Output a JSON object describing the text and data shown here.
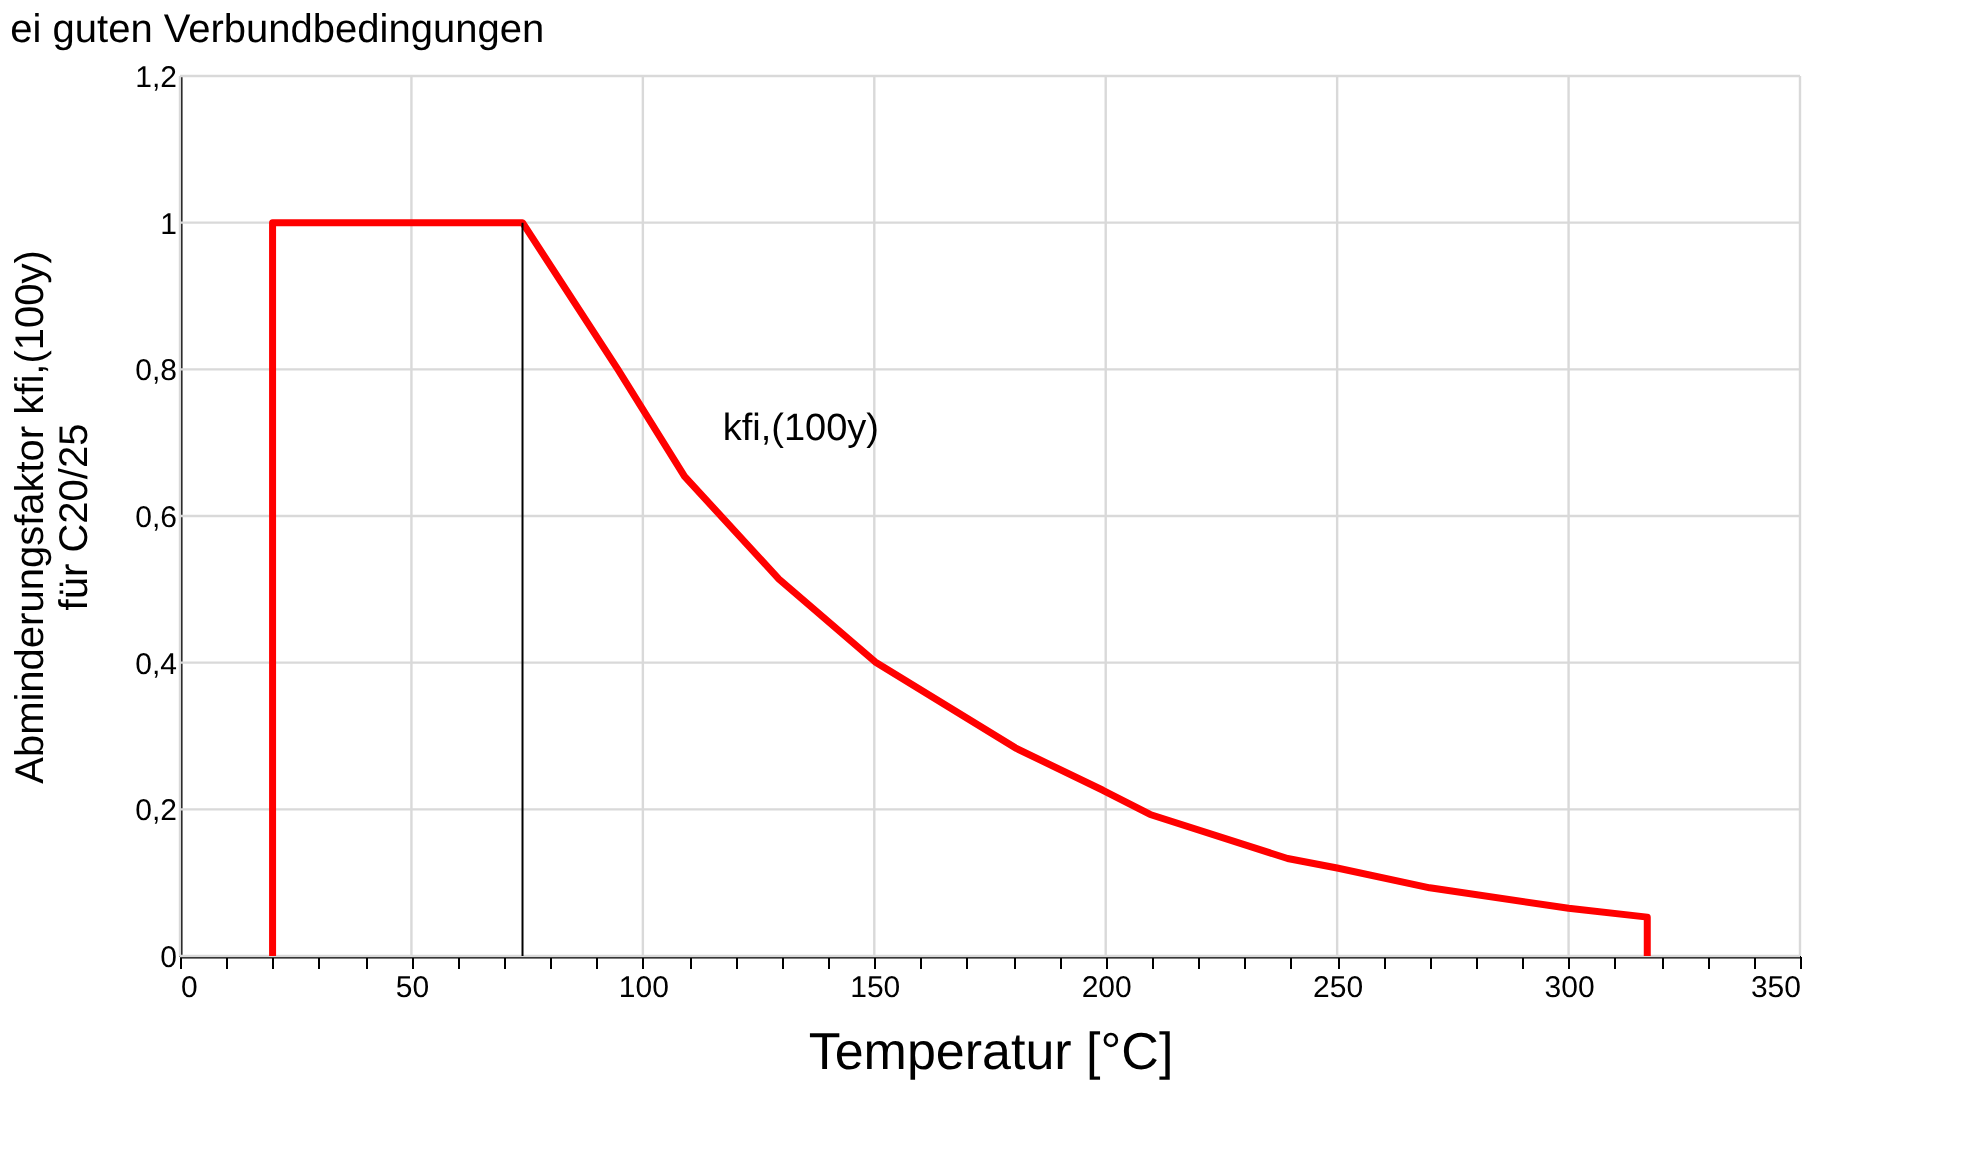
{
  "chart_data": {
    "type": "line",
    "title": "ei guten Verbundbedingungen",
    "xlabel": "Temperatur [°C]",
    "ylabel": "Abminderungsfaktor kfi,(100y)\nfür C20/25",
    "series": [
      {
        "color": "#ff0000",
        "x": [
          20,
          20,
          74,
          94.6,
          109,
          129.4,
          150.2,
          180.7,
          199.4,
          209.6,
          239.3,
          250,
          270,
          300,
          317,
          317
        ],
        "values": [
          0,
          1,
          1,
          0.8,
          0.654,
          0.514,
          0.401,
          0.283,
          0.226,
          0.193,
          0.133,
          0.12,
          0.093,
          0.065,
          0.053,
          0
        ]
      },
      {
        "color": "#000000",
        "x": [
          74,
          74
        ],
        "values": [
          0,
          1
        ]
      }
    ],
    "annotations": [
      "kfi,(100y)"
    ],
    "xlim": [
      0,
      350
    ],
    "ylim": [
      0,
      1.2
    ],
    "xticks": [
      0,
      {
        "value": 10,
        "label": null
      },
      {
        "value": 20,
        "label": null
      },
      {
        "value": 30,
        "label": null
      },
      {
        "value": 40,
        "label": null
      },
      50,
      {
        "value": 60,
        "label": null
      },
      {
        "value": 70,
        "label": null
      },
      {
        "value": 80,
        "label": null
      },
      {
        "value": 90,
        "label": null
      },
      100,
      {
        "value": 110,
        "label": null
      },
      {
        "value": 120,
        "label": null
      },
      {
        "value": 130,
        "label": null
      },
      {
        "value": 140,
        "label": null
      },
      150,
      {
        "value": 160,
        "label": null
      },
      {
        "value": 170,
        "label": null
      },
      {
        "value": 180,
        "label": null
      },
      {
        "value": 190,
        "label": null
      },
      200,
      {
        "value": 210,
        "label": null
      },
      {
        "value": 220,
        "label": null
      },
      {
        "value": 230,
        "label": null
      },
      {
        "value": 240,
        "label": null
      },
      250,
      {
        "value": 260,
        "label": null
      },
      {
        "value": 270,
        "label": null
      },
      {
        "value": 280,
        "label": null
      },
      {
        "value": 290,
        "label": null
      },
      300,
      {
        "value": 310,
        "label": null
      },
      {
        "value": 320,
        "label": null
      },
      {
        "value": 330,
        "label": null
      },
      {
        "value": 340,
        "label": null
      },
      350
    ],
    "yticks": [
      0,
      {
        "value": 0.2,
        "label": "0,2"
      },
      {
        "value": 0.4,
        "label": "0,4"
      },
      {
        "value": 0.6,
        "label": "0,6"
      },
      {
        "value": 0.8,
        "label": "0,8"
      },
      1,
      {
        "value": 1.2,
        "label": "1,2"
      }
    ],
    "grid": true,
    "marker": "none",
    "line_style": "solid"
  }
}
